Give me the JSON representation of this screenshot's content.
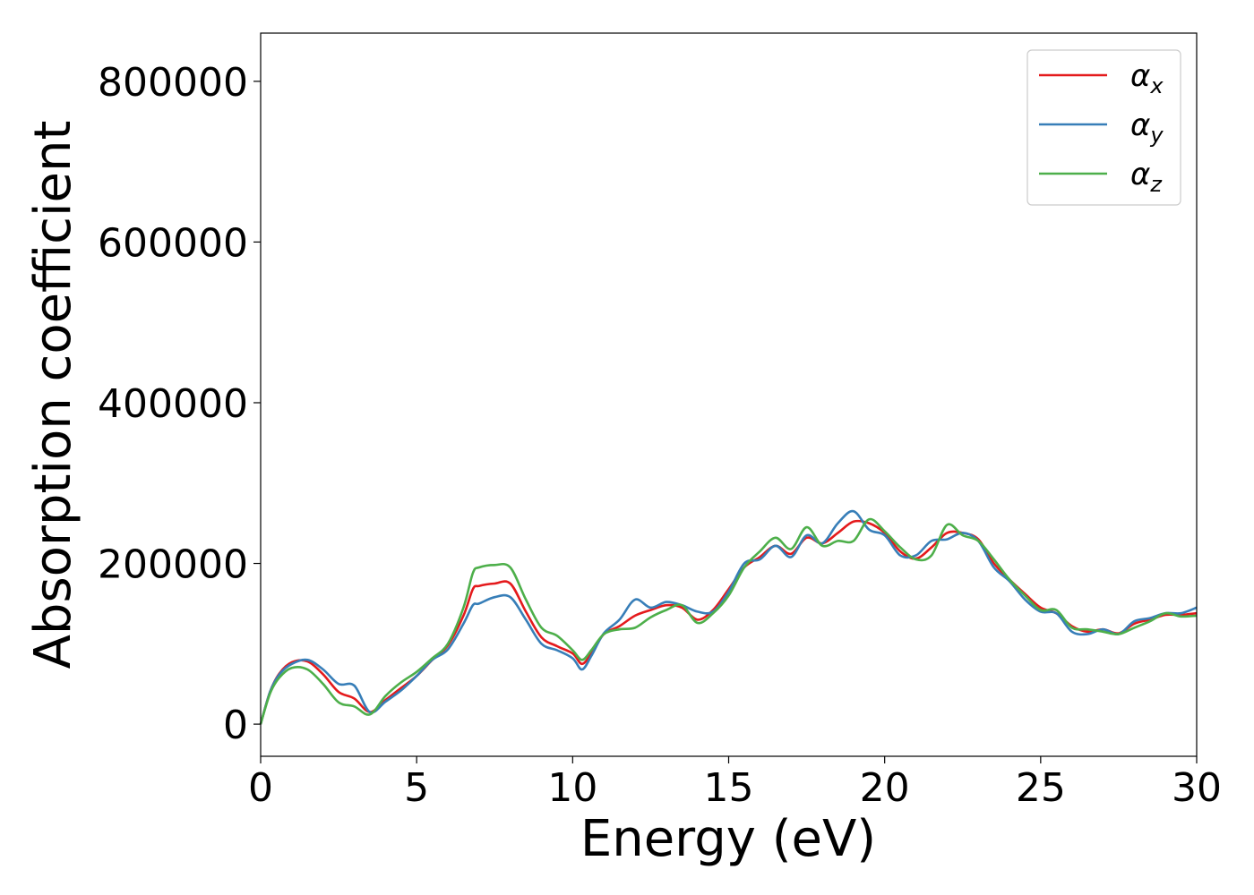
{
  "chart_data": {
    "type": "line",
    "title": "",
    "xlabel": "Energy (eV)",
    "ylabel": "Absorption coefficient",
    "xlim": [
      0,
      30
    ],
    "ylim": [
      -40000,
      860000
    ],
    "xticks": [
      0,
      5,
      10,
      15,
      20,
      25,
      30
    ],
    "yticks": [
      0,
      200000,
      400000,
      600000,
      800000
    ],
    "grid": false,
    "legend": "top-right",
    "series": [
      {
        "name": "α_x",
        "legend_base": "α",
        "legend_sub": "x",
        "color": "#e41a1c",
        "x": [
          0,
          0.3,
          0.6,
          1,
          1.5,
          2,
          2.5,
          3,
          3.5,
          4,
          4.5,
          5,
          5.5,
          6,
          6.5,
          6.8,
          7,
          7.5,
          8,
          8.5,
          9,
          9.5,
          10,
          10.3,
          10.6,
          11,
          11.5,
          12,
          12.5,
          13,
          13.5,
          14,
          14.5,
          15,
          15.5,
          16,
          16.5,
          17,
          17.5,
          18,
          18.5,
          19,
          19.5,
          20,
          20.5,
          21,
          21.5,
          22,
          22.5,
          23,
          23.5,
          24,
          24.5,
          25,
          25.5,
          26,
          26.5,
          27,
          27.5,
          28,
          28.5,
          29,
          29.5,
          30
        ],
        "y": [
          0,
          40000,
          63000,
          77000,
          78000,
          62000,
          40000,
          32000,
          15000,
          30000,
          45000,
          60000,
          80000,
          98000,
          135000,
          168000,
          172000,
          175000,
          175000,
          140000,
          108000,
          97000,
          88000,
          75000,
          88000,
          112000,
          122000,
          135000,
          142000,
          148000,
          145000,
          130000,
          142000,
          168000,
          195000,
          208000,
          222000,
          212000,
          232000,
          225000,
          238000,
          252000,
          250000,
          238000,
          215000,
          206000,
          220000,
          238000,
          238000,
          230000,
          200000,
          180000,
          162000,
          145000,
          138000,
          122000,
          115000,
          118000,
          113000,
          125000,
          130000,
          136000,
          136000,
          138000
        ]
      },
      {
        "name": "α_y",
        "legend_base": "α",
        "legend_sub": "y",
        "color": "#377eb8",
        "x": [
          0,
          0.3,
          0.6,
          1,
          1.5,
          2,
          2.5,
          3,
          3.5,
          4,
          4.5,
          5,
          5.5,
          6,
          6.5,
          6.8,
          7,
          7.5,
          8,
          8.5,
          9,
          9.5,
          10,
          10.3,
          10.6,
          11,
          11.5,
          12,
          12.5,
          13,
          13.5,
          14,
          14.5,
          15,
          15.5,
          16,
          16.5,
          17,
          17.5,
          18,
          18.5,
          19,
          19.5,
          20,
          20.5,
          21,
          21.5,
          22,
          22.5,
          23,
          23.5,
          24,
          24.5,
          25,
          25.5,
          26,
          26.5,
          27,
          27.5,
          28,
          28.5,
          29,
          29.5,
          30
        ],
        "y": [
          0,
          40000,
          62000,
          75000,
          80000,
          68000,
          50000,
          48000,
          15000,
          28000,
          42000,
          60000,
          80000,
          93000,
          125000,
          148000,
          150000,
          158000,
          158000,
          130000,
          100000,
          92000,
          82000,
          68000,
          85000,
          113000,
          130000,
          155000,
          145000,
          152000,
          148000,
          140000,
          140000,
          165000,
          200000,
          205000,
          222000,
          208000,
          235000,
          225000,
          250000,
          265000,
          242000,
          235000,
          210000,
          210000,
          228000,
          230000,
          238000,
          228000,
          195000,
          178000,
          155000,
          140000,
          138000,
          115000,
          112000,
          118000,
          112000,
          128000,
          132000,
          138000,
          138000,
          145000
        ]
      },
      {
        "name": "α_z",
        "legend_base": "α",
        "legend_sub": "z",
        "color": "#4daf4a",
        "x": [
          0,
          0.3,
          0.6,
          1,
          1.5,
          2,
          2.5,
          3,
          3.5,
          4,
          4.5,
          5,
          5.5,
          6,
          6.5,
          6.8,
          7,
          7.5,
          8,
          8.5,
          9,
          9.5,
          10,
          10.3,
          10.6,
          11,
          11.5,
          12,
          12.5,
          13,
          13.5,
          14,
          14.5,
          15,
          15.5,
          16,
          16.5,
          17,
          17.5,
          18,
          18.5,
          19,
          19.5,
          20,
          20.5,
          21,
          21.5,
          22,
          22.5,
          23,
          23.5,
          24,
          24.5,
          25,
          25.5,
          26,
          26.5,
          27,
          27.5,
          28,
          28.5,
          29,
          29.5,
          30
        ],
        "y": [
          0,
          38000,
          58000,
          70000,
          68000,
          50000,
          27000,
          22000,
          12000,
          35000,
          52000,
          65000,
          82000,
          100000,
          145000,
          188000,
          195000,
          198000,
          195000,
          155000,
          120000,
          110000,
          92000,
          80000,
          92000,
          112000,
          118000,
          120000,
          133000,
          142000,
          148000,
          126000,
          138000,
          160000,
          195000,
          215000,
          232000,
          218000,
          245000,
          222000,
          228000,
          228000,
          255000,
          240000,
          220000,
          205000,
          210000,
          248000,
          235000,
          228000,
          205000,
          180000,
          160000,
          142000,
          142000,
          120000,
          118000,
          115000,
          112000,
          120000,
          128000,
          138000,
          134000,
          135000
        ]
      }
    ]
  }
}
